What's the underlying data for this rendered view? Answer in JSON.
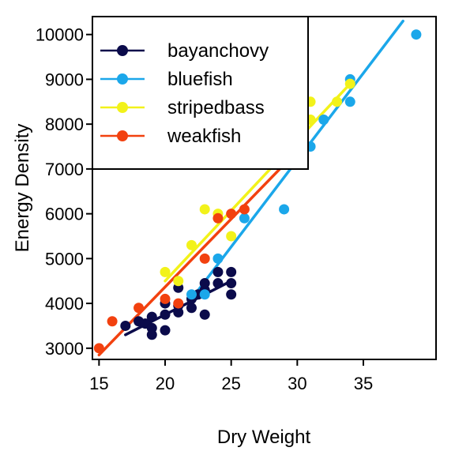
{
  "chart_data": {
    "type": "scatter",
    "title": "",
    "xlabel": "Dry Weight",
    "ylabel": "Energy Density",
    "xlim": [
      14.5,
      40.5
    ],
    "ylim": [
      2750,
      10400
    ],
    "x_ticks": [
      15,
      20,
      25,
      30,
      35
    ],
    "y_ticks": [
      3000,
      4000,
      5000,
      6000,
      7000,
      8000,
      9000,
      10000
    ],
    "grid": false,
    "legend_position": "top-left",
    "series": [
      {
        "name": "bayanchovy",
        "color": "#0b0b4b",
        "points": [
          [
            17,
            3500
          ],
          [
            18,
            3600
          ],
          [
            18.5,
            3550
          ],
          [
            19,
            3300
          ],
          [
            19,
            3450
          ],
          [
            19,
            3700
          ],
          [
            20,
            3400
          ],
          [
            20,
            3750
          ],
          [
            20,
            4000
          ],
          [
            21,
            3800
          ],
          [
            21,
            3950
          ],
          [
            21,
            4350
          ],
          [
            22,
            3900
          ],
          [
            22,
            4100
          ],
          [
            22.5,
            4200
          ],
          [
            23,
            3750
          ],
          [
            23,
            4300
          ],
          [
            23,
            4450
          ],
          [
            24,
            4450
          ],
          [
            24,
            4700
          ],
          [
            25,
            4200
          ],
          [
            25,
            4450
          ],
          [
            25,
            4700
          ]
        ],
        "fit": [
          [
            17,
            3300
          ],
          [
            25,
            4500
          ]
        ]
      },
      {
        "name": "bluefish",
        "color": "#1ba7ea",
        "points": [
          [
            22,
            4200
          ],
          [
            23,
            4200
          ],
          [
            24,
            5000
          ],
          [
            26,
            5900
          ],
          [
            29,
            6100
          ],
          [
            31,
            7500
          ],
          [
            32,
            8100
          ],
          [
            34,
            8500
          ],
          [
            34,
            9000
          ],
          [
            39,
            10000
          ]
        ],
        "fit": [
          [
            22,
            4100
          ],
          [
            38,
            10300
          ]
        ]
      },
      {
        "name": "stripedbass",
        "color": "#f2f21a",
        "points": [
          [
            20,
            4700
          ],
          [
            21,
            4500
          ],
          [
            22,
            5300
          ],
          [
            23,
            6100
          ],
          [
            24,
            6000
          ],
          [
            25,
            5500
          ],
          [
            31,
            8100
          ],
          [
            31,
            8500
          ],
          [
            33,
            8500
          ],
          [
            34,
            8900
          ]
        ],
        "fit": [
          [
            20,
            4500
          ],
          [
            34,
            8900
          ]
        ]
      },
      {
        "name": "weakfish",
        "color": "#f2410f",
        "points": [
          [
            15,
            3000
          ],
          [
            16,
            3600
          ],
          [
            18,
            3900
          ],
          [
            20,
            4100
          ],
          [
            21,
            4000
          ],
          [
            23,
            5000
          ],
          [
            24,
            5900
          ],
          [
            25,
            6000
          ],
          [
            26,
            6100
          ]
        ],
        "fit": [
          [
            15,
            2850
          ],
          [
            30,
            7400
          ]
        ]
      }
    ]
  }
}
